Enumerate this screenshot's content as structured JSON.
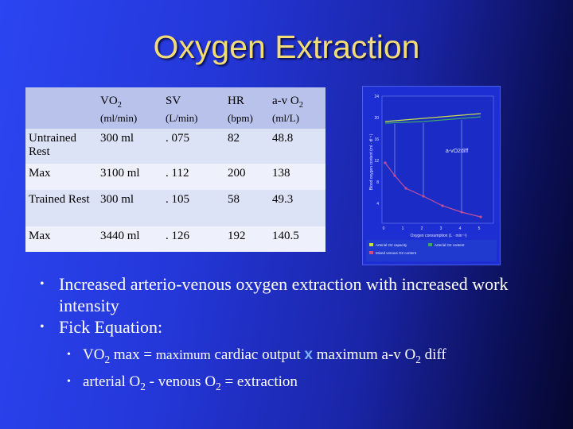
{
  "title": "Oxygen Extraction",
  "table": {
    "headers": [
      {
        "main": "VO",
        "sub": "2",
        "unit": "(ml/min)"
      },
      {
        "main": "SV",
        "sub": "",
        "unit": "(L/min)"
      },
      {
        "main": "HR",
        "sub": "",
        "unit": "(bpm)"
      },
      {
        "main": "a-v O",
        "sub": "2",
        "unit": "(ml/L)"
      }
    ],
    "rows": [
      {
        "label": "Untrained Rest",
        "vo2": "300 ml",
        "sv": ". 075",
        "hr": "82",
        "avo2": "48.8"
      },
      {
        "label": "Max",
        "vo2": "3100 ml",
        "sv": ". 112",
        "hr": "200",
        "avo2": "138"
      },
      {
        "label": "Trained Rest",
        "vo2": "300 ml",
        "sv": ". 105",
        "hr": "58",
        "avo2": "49.3"
      },
      {
        "label": "Max",
        "vo2": "3440 ml",
        "sv": ". 126",
        "hr": "192",
        "avo2": "140.5"
      }
    ]
  },
  "figure": {
    "annotation": "a-vO2diff",
    "xlabel": "Oxygen consumption (L · min⁻¹)",
    "ylabel": "Blood oxygen content (ml · dl⁻¹)",
    "y_ticks": [
      "24",
      "20",
      "16",
      "12",
      "8",
      "4"
    ],
    "x_ticks": [
      "0",
      "1",
      "2",
      "3",
      "4",
      "5"
    ],
    "legend": [
      "Arterial O2 capacity",
      "Arterial O2 content",
      "Mixed venous O2 content"
    ],
    "colors": {
      "capacity": "#c8e04a",
      "arterial": "#3fa66a",
      "venous": "#c0509a"
    }
  },
  "bullets": {
    "b1": "Increased arterio-venous oxygen extraction with increased work intensity",
    "b2": "Fick Equation:",
    "s1": {
      "vo2": "VO",
      "sub": "2",
      "a": " max = ",
      "b": "maximum",
      "c": " cardiac output ",
      "x": "x",
      "d": " maximum a-v O",
      "e": " diff"
    },
    "s2": {
      "a": "arterial O",
      "b": " - venous O",
      "c": " = extraction"
    }
  }
}
